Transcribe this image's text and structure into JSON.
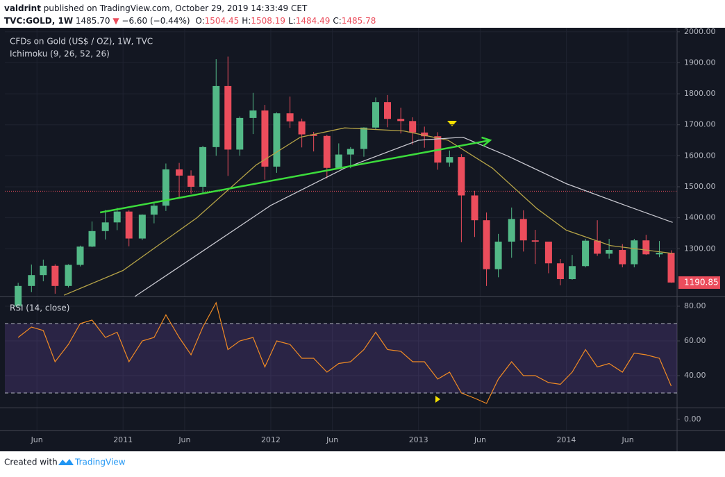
{
  "header": {
    "author": "valdrint",
    "published": "published on TradingView.com, October 29, 2019 14:33:49 CET",
    "symbol": "TVC:GOLD, 1W",
    "price": "1485.70",
    "change_arrow": "▼",
    "change": "−6.60 (−0.44%)",
    "ohlc": [
      {
        "label": "O:",
        "value": "1504.45"
      },
      {
        "label": "H:",
        "value": "1508.19"
      },
      {
        "label": "L:",
        "value": "1484.49"
      },
      {
        "label": "C:",
        "value": "1485.78"
      }
    ]
  },
  "chart_data": [
    {
      "type": "candlestick",
      "title": "CFDs on Gold (US$ / OZ), 1W, TVC",
      "subtitle": "Ichimoku (9, 26, 52, 26)",
      "up_color": "#53b987",
      "down_color": "#eb4d5c",
      "grid": true,
      "xlim": [
        2010.2,
        2014.75
      ],
      "xticks": [
        {
          "value": 2010.417,
          "label": "Jun"
        },
        {
          "value": 2011,
          "label": "2011"
        },
        {
          "value": 2011.417,
          "label": "Jun"
        },
        {
          "value": 2012,
          "label": "2012"
        },
        {
          "value": 2012.417,
          "label": "Jun"
        },
        {
          "value": 2013,
          "label": "2013"
        },
        {
          "value": 2013.417,
          "label": "Jun"
        },
        {
          "value": 2014,
          "label": "2014"
        },
        {
          "value": 2014.417,
          "label": "Jun"
        }
      ],
      "ylim": [
        1146,
        2013
      ],
      "yticks": [
        {
          "value": 1300,
          "label": "1300.00"
        },
        {
          "value": 1400,
          "label": "1400.00"
        },
        {
          "value": 1500,
          "label": "1500.00"
        },
        {
          "value": 1600,
          "label": "1600.00"
        },
        {
          "value": 1700,
          "label": "1700.00"
        },
        {
          "value": 1800,
          "label": "1800.00"
        },
        {
          "value": 1900,
          "label": "1900.00"
        },
        {
          "value": 2000,
          "label": "2000.00"
        }
      ],
      "x": [
        2010.29,
        2010.38,
        2010.46,
        2010.54,
        2010.63,
        2010.71,
        2010.79,
        2010.88,
        2010.96,
        2011.04,
        2011.13,
        2011.21,
        2011.29,
        2011.38,
        2011.46,
        2011.54,
        2011.63,
        2011.71,
        2011.79,
        2011.88,
        2011.96,
        2012.04,
        2012.13,
        2012.21,
        2012.29,
        2012.38,
        2012.46,
        2012.54,
        2012.63,
        2012.71,
        2012.79,
        2012.88,
        2012.96,
        2013.04,
        2013.13,
        2013.21,
        2013.29,
        2013.38,
        2013.46,
        2013.54,
        2013.63,
        2013.71,
        2013.79,
        2013.88,
        2013.96,
        2014.04,
        2014.13,
        2014.21,
        2014.29,
        2014.38,
        2014.46,
        2014.54,
        2014.63,
        2014.71
      ],
      "open": [
        1113,
        1180,
        1215,
        1245,
        1180,
        1248,
        1307,
        1357,
        1385,
        1420,
        1333,
        1410,
        1439,
        1556,
        1536,
        1500,
        1628,
        1825,
        1620,
        1722,
        1746,
        1565,
        1737,
        1711,
        1669,
        1664,
        1561,
        1604,
        1622,
        1691,
        1773,
        1719,
        1712,
        1675,
        1663,
        1578,
        1596,
        1472,
        1392,
        1234,
        1323,
        1396,
        1327,
        1323,
        1253,
        1202,
        1244,
        1326,
        1284,
        1296,
        1250,
        1327,
        1282,
        1287
      ],
      "high": [
        1190,
        1249,
        1265,
        1250,
        1250,
        1310,
        1388,
        1425,
        1432,
        1424,
        1411,
        1448,
        1575,
        1577,
        1553,
        1632,
        1912,
        1920,
        1727,
        1803,
        1764,
        1740,
        1791,
        1720,
        1677,
        1668,
        1640,
        1628,
        1692,
        1788,
        1796,
        1755,
        1724,
        1694,
        1676,
        1617,
        1605,
        1487,
        1417,
        1348,
        1433,
        1424,
        1361,
        1323,
        1267,
        1280,
        1332,
        1392,
        1332,
        1315,
        1332,
        1345,
        1325,
        1295
      ],
      "low": [
        1110,
        1160,
        1195,
        1155,
        1175,
        1243,
        1305,
        1330,
        1360,
        1308,
        1328,
        1382,
        1422,
        1462,
        1478,
        1480,
        1600,
        1535,
        1600,
        1670,
        1523,
        1545,
        1690,
        1627,
        1614,
        1527,
        1560,
        1560,
        1597,
        1685,
        1692,
        1672,
        1636,
        1626,
        1555,
        1565,
        1321,
        1338,
        1180,
        1208,
        1271,
        1291,
        1251,
        1221,
        1182,
        1200,
        1240,
        1277,
        1268,
        1240,
        1240,
        1280,
        1273,
        1190
      ],
      "close": [
        1180,
        1215,
        1245,
        1180,
        1248,
        1307,
        1357,
        1385,
        1420,
        1333,
        1410,
        1439,
        1556,
        1536,
        1500,
        1628,
        1825,
        1620,
        1722,
        1746,
        1565,
        1737,
        1711,
        1669,
        1664,
        1561,
        1604,
        1622,
        1691,
        1773,
        1719,
        1712,
        1675,
        1663,
        1578,
        1596,
        1472,
        1392,
        1234,
        1323,
        1396,
        1327,
        1323,
        1253,
        1202,
        1244,
        1326,
        1284,
        1296,
        1250,
        1327,
        1282,
        1287,
        1191
      ],
      "series": [
        {
          "color": "#b5a347",
          "x": [
            2010.6,
            2011.0,
            2011.5,
            2011.9,
            2012.2,
            2012.5,
            2012.9,
            2013.2,
            2013.5,
            2013.8,
            2014.0,
            2014.3,
            2014.72
          ],
          "values": [
            1150,
            1230,
            1400,
            1570,
            1660,
            1690,
            1680,
            1650,
            1560,
            1430,
            1360,
            1310,
            1285
          ]
        },
        {
          "color": "#c8c8d0",
          "x": [
            2011.08,
            2011.5,
            2012.0,
            2012.5,
            2013.0,
            2013.3,
            2013.6,
            2014.0,
            2014.4,
            2014.72
          ],
          "values": [
            1146,
            1280,
            1440,
            1560,
            1650,
            1660,
            1600,
            1510,
            1440,
            1385
          ]
        }
      ],
      "trend_line": {
        "color": "#3cdc3c",
        "x": [
          2010.845,
          2013.485
        ],
        "values": [
          1417,
          1650
        ]
      },
      "price_line": 1485.7,
      "last_value": 1190.85,
      "last_value_label": "1190.85"
    },
    {
      "type": "line",
      "title": "RSI (14, close)",
      "grid": true,
      "ylim": [
        21.6,
        84.4
      ],
      "yticks": [
        {
          "value": 40,
          "label": "40.00"
        },
        {
          "value": 60,
          "label": "60.00"
        },
        {
          "value": 80,
          "label": "80.00"
        }
      ],
      "levels": [
        30,
        70
      ],
      "series": [
        {
          "color": "#f08a24",
          "x": [
            2010.29,
            2010.38,
            2010.46,
            2010.54,
            2010.63,
            2010.71,
            2010.79,
            2010.88,
            2010.96,
            2011.04,
            2011.13,
            2011.21,
            2011.29,
            2011.38,
            2011.46,
            2011.54,
            2011.63,
            2011.71,
            2011.79,
            2011.88,
            2011.96,
            2012.04,
            2012.13,
            2012.21,
            2012.29,
            2012.38,
            2012.46,
            2012.54,
            2012.63,
            2012.71,
            2012.79,
            2012.88,
            2012.96,
            2013.04,
            2013.13,
            2013.21,
            2013.29,
            2013.38,
            2013.46,
            2013.54,
            2013.63,
            2013.71,
            2013.79,
            2013.88,
            2013.96,
            2014.04,
            2014.13,
            2014.21,
            2014.29,
            2014.38,
            2014.46,
            2014.54,
            2014.63,
            2014.71
          ],
          "values": [
            62,
            68,
            66,
            48,
            58,
            70,
            72,
            62,
            65,
            48,
            60,
            62,
            75,
            62,
            52,
            68,
            82,
            55,
            60,
            62,
            45,
            60,
            58,
            50,
            50,
            42,
            47,
            48,
            55,
            65,
            55,
            54,
            48,
            48,
            38,
            42,
            30,
            27,
            24,
            38,
            48,
            40,
            40,
            36,
            35,
            42,
            55,
            45,
            47,
            42,
            53,
            52,
            50,
            34
          ]
        }
      ]
    },
    {
      "type": "line",
      "ylim": [
        -3,
        3
      ],
      "yticks": [
        {
          "value": 0,
          "label": "0.00"
        }
      ],
      "series": []
    }
  ],
  "footer": {
    "created": "Created with",
    "brand": "TradingView"
  }
}
